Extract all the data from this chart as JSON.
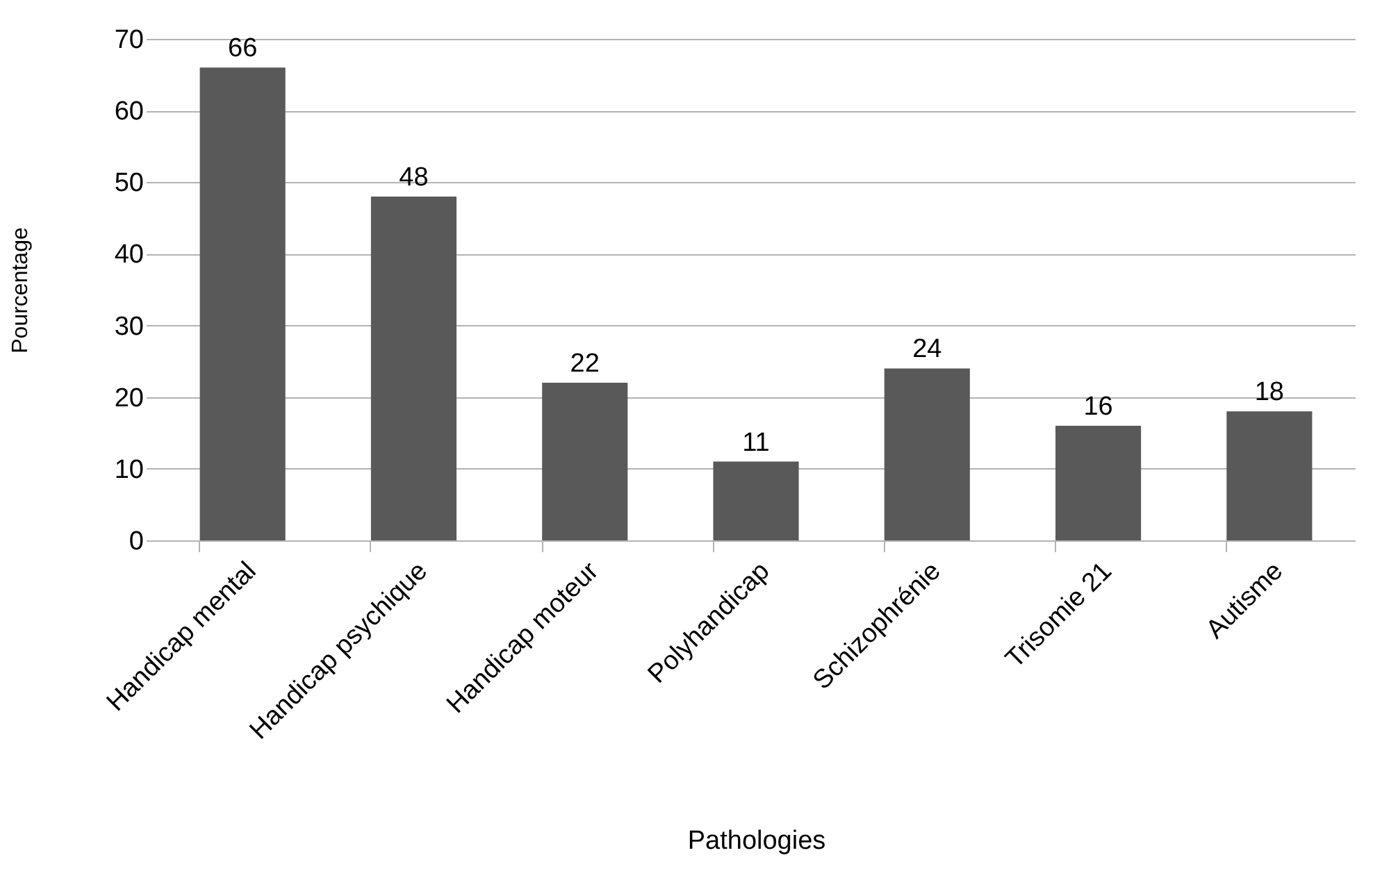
{
  "chart_data": {
    "type": "bar",
    "xlabel": "Pathologies",
    "ylabel": "Pourcentage",
    "categories": [
      "Handicap mental",
      "Handicap psychique",
      "Handicap moteur",
      "Polyhandicap",
      "Schizophrénie",
      "Trisomie 21",
      "Autisme"
    ],
    "values": [
      66,
      48,
      22,
      11,
      24,
      16,
      18
    ],
    "color": "#595959",
    "ylim": [
      0,
      70
    ],
    "yticks": [
      0,
      10,
      20,
      30,
      40,
      50,
      60,
      70
    ],
    "grid": "y",
    "data_labels": true
  }
}
